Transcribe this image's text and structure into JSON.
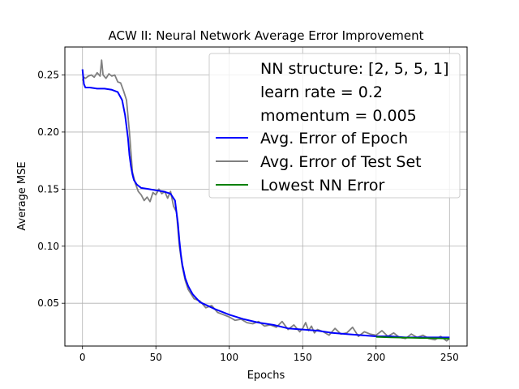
{
  "chart_data": {
    "type": "line",
    "title": "ACW II: Neural Network Average Error Improvement",
    "xlabel": "Epochs",
    "ylabel": "Average MSE",
    "xlim": [
      -12,
      262
    ],
    "ylim": [
      0.0125,
      0.2745
    ],
    "xticks": [
      0,
      50,
      100,
      150,
      200,
      250
    ],
    "xtick_labels": [
      "0",
      "50",
      "100",
      "150",
      "200",
      "250"
    ],
    "yticks": [
      0.05,
      0.1,
      0.15,
      0.2,
      0.25
    ],
    "ytick_labels": [
      "0.05",
      "0.10",
      "0.15",
      "0.20",
      "0.25"
    ],
    "grid": true,
    "legend": {
      "placement": "top-right",
      "text_lines": [
        "NN structure: [2, 5, 5, 1]",
        "learn rate = 0.2",
        "momentum = 0.005"
      ],
      "entries": [
        "Avg. Error of Epoch",
        "Avg. Error of Test Set",
        "Lowest NN Error"
      ]
    },
    "series": [
      {
        "name": "Avg. Error of Epoch",
        "color": "#0000ff",
        "x": [
          0,
          1,
          2,
          5,
          10,
          15,
          20,
          24,
          27,
          29,
          31,
          32,
          33,
          34,
          35,
          37,
          40,
          45,
          50,
          55,
          60,
          63,
          65,
          66,
          67,
          68,
          70,
          72,
          75,
          80,
          90,
          100,
          110,
          120,
          130,
          140,
          150,
          160,
          170,
          180,
          190,
          200,
          210,
          220,
          230,
          240,
          250
        ],
        "values": [
          0.255,
          0.242,
          0.239,
          0.239,
          0.238,
          0.238,
          0.237,
          0.235,
          0.228,
          0.215,
          0.195,
          0.18,
          0.17,
          0.163,
          0.158,
          0.154,
          0.151,
          0.15,
          0.149,
          0.148,
          0.146,
          0.14,
          0.12,
          0.105,
          0.093,
          0.084,
          0.072,
          0.065,
          0.058,
          0.051,
          0.045,
          0.04,
          0.036,
          0.033,
          0.031,
          0.028,
          0.027,
          0.026,
          0.024,
          0.023,
          0.022,
          0.021,
          0.021,
          0.02,
          0.02,
          0.02,
          0.02
        ]
      },
      {
        "name": "Avg. Error of Test Set",
        "color": "#808080",
        "x": [
          0,
          1,
          2,
          4,
          6,
          8,
          10,
          12,
          13,
          14,
          16,
          18,
          20,
          22,
          24,
          26,
          28,
          30,
          32,
          34,
          36,
          38,
          40,
          42,
          44,
          46,
          48,
          50,
          52,
          54,
          56,
          58,
          60,
          62,
          64,
          66,
          68,
          70,
          72,
          74,
          76,
          78,
          80,
          84,
          88,
          92,
          96,
          100,
          104,
          108,
          112,
          116,
          120,
          124,
          128,
          132,
          136,
          140,
          144,
          148,
          150,
          152,
          154,
          156,
          158,
          160,
          164,
          168,
          172,
          176,
          180,
          184,
          188,
          192,
          196,
          200,
          204,
          208,
          212,
          216,
          220,
          224,
          228,
          232,
          236,
          240,
          244,
          248,
          250
        ],
        "values": [
          0.245,
          0.248,
          0.247,
          0.249,
          0.25,
          0.248,
          0.252,
          0.249,
          0.263,
          0.25,
          0.247,
          0.251,
          0.249,
          0.25,
          0.244,
          0.243,
          0.236,
          0.228,
          0.2,
          0.165,
          0.155,
          0.148,
          0.145,
          0.14,
          0.143,
          0.139,
          0.147,
          0.145,
          0.15,
          0.146,
          0.148,
          0.142,
          0.148,
          0.135,
          0.13,
          0.1,
          0.082,
          0.07,
          0.062,
          0.058,
          0.054,
          0.053,
          0.052,
          0.046,
          0.048,
          0.042,
          0.04,
          0.038,
          0.035,
          0.036,
          0.033,
          0.032,
          0.034,
          0.03,
          0.031,
          0.029,
          0.034,
          0.027,
          0.031,
          0.025,
          0.028,
          0.033,
          0.026,
          0.03,
          0.024,
          0.027,
          0.025,
          0.022,
          0.028,
          0.023,
          0.024,
          0.029,
          0.021,
          0.025,
          0.023,
          0.022,
          0.026,
          0.021,
          0.024,
          0.02,
          0.019,
          0.023,
          0.02,
          0.022,
          0.019,
          0.018,
          0.021,
          0.017,
          0.019
        ]
      },
      {
        "name": "Lowest NN Error",
        "color": "#008000",
        "x": [
          200,
          210,
          220,
          230,
          240,
          250
        ],
        "values": [
          0.0205,
          0.02,
          0.0198,
          0.0195,
          0.0193,
          0.019
        ]
      }
    ]
  }
}
